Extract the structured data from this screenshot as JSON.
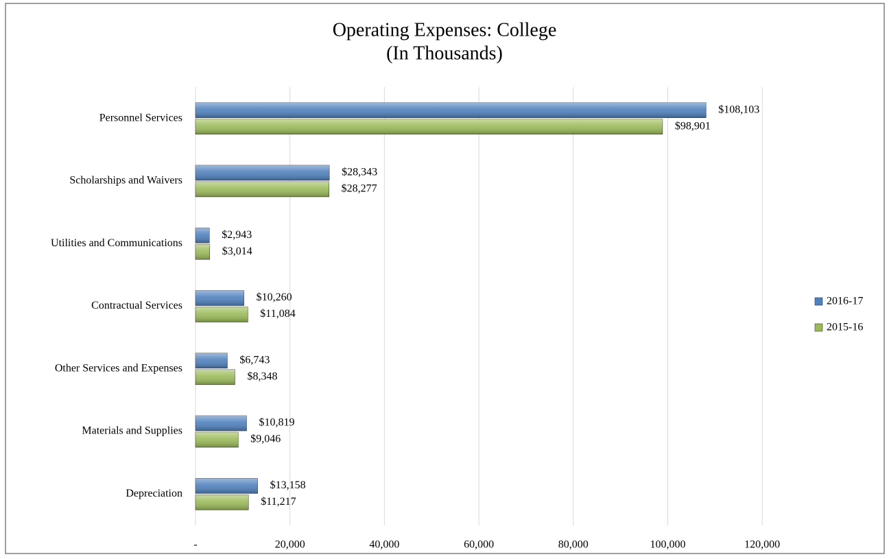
{
  "chart_data": {
    "type": "bar",
    "orientation": "horizontal",
    "title": "Operating Expenses: College",
    "subtitle": "(In Thousands)",
    "categories": [
      "Personnel Services",
      "Scholarships and Waivers",
      "Utilities and Communications",
      "Contractual Services",
      "Other Services and Expenses",
      "Materials and Supplies",
      "Depreciation"
    ],
    "series": [
      {
        "name": "2016-17",
        "color": "#4f81bd",
        "values": [
          108103,
          28343,
          2943,
          10260,
          6743,
          10819,
          13158
        ],
        "value_labels": [
          "$108,103",
          "$28,343",
          "$2,943",
          "$10,260",
          "$6,743",
          "$10,819",
          "$13,158"
        ]
      },
      {
        "name": "2015-16",
        "color": "#9bbb59",
        "values": [
          98901,
          28277,
          3014,
          11084,
          8348,
          9046,
          11217
        ],
        "value_labels": [
          "$98,901",
          "$28,277",
          "$3,014",
          "$11,084",
          "$8,348",
          "$9,046",
          "$11,217"
        ]
      }
    ],
    "xlim": [
      0,
      130000
    ],
    "xticks": [
      {
        "value": 0,
        "label": "-"
      },
      {
        "value": 20000,
        "label": "20,000"
      },
      {
        "value": 40000,
        "label": "40,000"
      },
      {
        "value": 60000,
        "label": "60,000"
      },
      {
        "value": 80000,
        "label": "80,000"
      },
      {
        "value": 100000,
        "label": "100,000"
      },
      {
        "value": 120000,
        "label": "120,000"
      }
    ],
    "grid": true,
    "legend": "right"
  }
}
